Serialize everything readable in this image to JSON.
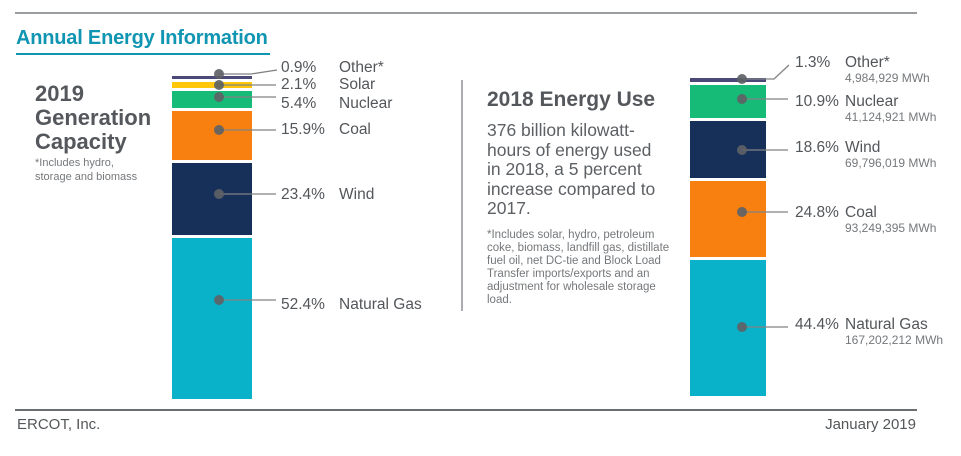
{
  "header": {
    "title": "Annual Energy Information"
  },
  "middle_panel": {
    "body": "376 billion kilowatt-hours of energy used in 2018, a 5 percent increase compared to 2017.",
    "footnote": "*Includes solar, hydro, petroleum coke, biomass, landfill gas, distillate fuel oil, net DC-tie and Block Load Transfer imports/exports and an adjustment for wholesale storage load."
  },
  "footer": {
    "company": "ERCOT, Inc.",
    "date": "January 2019"
  },
  "colors": {
    "accent_teal": "#1095b2",
    "text_dark": "#53565a",
    "text_gray": "#75787b",
    "rule_gray": "#9b9ea1",
    "natural_gas": "#0ab2c9",
    "wind": "#17305a",
    "coal": "#f78010",
    "nuclear": "#16bb78",
    "solar": "#ffc70a",
    "other": "#4a4978"
  },
  "chart_data": [
    {
      "type": "bar",
      "subtype": "stacked-percentage-column",
      "title": "2019 Generation Capacity",
      "note": "*Includes hydro, storage and biomass",
      "unit": "%",
      "segments": [
        {
          "label": "Other*",
          "pct": 0.9,
          "pct_label": "0.9%",
          "color": "#4a4978"
        },
        {
          "label": "Solar",
          "pct": 2.1,
          "pct_label": "2.1%",
          "color": "#ffc70a"
        },
        {
          "label": "Nuclear",
          "pct": 5.4,
          "pct_label": "5.4%",
          "color": "#16bb78"
        },
        {
          "label": "Coal",
          "pct": 15.9,
          "pct_label": "15.9%",
          "color": "#f78010"
        },
        {
          "label": "Wind",
          "pct": 23.4,
          "pct_label": "23.4%",
          "color": "#17305a"
        },
        {
          "label": "Natural Gas",
          "pct": 52.4,
          "pct_label": "52.4%",
          "color": "#0ab2c9"
        }
      ]
    },
    {
      "type": "bar",
      "subtype": "stacked-percentage-column",
      "title": "2018 Energy Use",
      "unit": "%",
      "segments": [
        {
          "label": "Other*",
          "pct": 1.3,
          "pct_label": "1.3%",
          "mwh": "4,984,929 MWh",
          "color": "#4a4978"
        },
        {
          "label": "Nuclear",
          "pct": 10.9,
          "pct_label": "10.9%",
          "mwh": "41,124,921 MWh",
          "color": "#16bb78"
        },
        {
          "label": "Wind",
          "pct": 18.6,
          "pct_label": "18.6%",
          "mwh": "69,796,019 MWh",
          "color": "#17305a"
        },
        {
          "label": "Coal",
          "pct": 24.8,
          "pct_label": "24.8%",
          "mwh": "93,249,395 MWh",
          "color": "#f78010"
        },
        {
          "label": "Natural Gas",
          "pct": 44.4,
          "pct_label": "44.4%",
          "mwh": "167,202,212 MWh",
          "color": "#0ab2c9"
        }
      ]
    }
  ]
}
